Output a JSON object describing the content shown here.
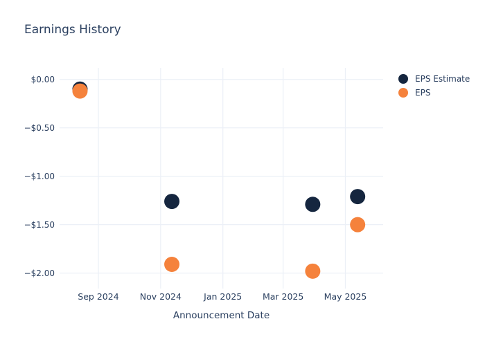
{
  "title": "Earnings History",
  "colors": {
    "text": "#2a3f5f",
    "grid": "#ecf0f7",
    "background": "#ffffff",
    "eps_estimate": "#15263f",
    "eps": "#f5823c"
  },
  "legend": {
    "items": [
      {
        "label": "EPS Estimate",
        "color": "#15263f"
      },
      {
        "label": "EPS",
        "color": "#f5823c"
      }
    ]
  },
  "chart_data": {
    "type": "scatter",
    "title": "Earnings History",
    "xlabel": "Announcement Date",
    "ylabel": "",
    "x": [
      "2024-08-14",
      "2024-11-12",
      "2025-03-30",
      "2025-05-13"
    ],
    "series": [
      {
        "name": "EPS Estimate",
        "color": "#15263f",
        "values": [
          -0.1,
          -1.26,
          -1.29,
          -1.21
        ]
      },
      {
        "name": "EPS",
        "color": "#f5823c",
        "values": [
          -0.12,
          -1.91,
          -1.98,
          -1.5
        ]
      }
    ],
    "xticks": [
      {
        "value": "2024-09-01",
        "label": "Sep 2024"
      },
      {
        "value": "2024-11-01",
        "label": "Nov 2024"
      },
      {
        "value": "2025-01-01",
        "label": "Jan 2025"
      },
      {
        "value": "2025-03-01",
        "label": "Mar 2025"
      },
      {
        "value": "2025-05-01",
        "label": "May 2025"
      }
    ],
    "yticks": [
      {
        "value": 0.0,
        "label": "$0.00"
      },
      {
        "value": -0.5,
        "label": "−$0.50"
      },
      {
        "value": -1.0,
        "label": "−$1.00"
      },
      {
        "value": -1.5,
        "label": "−$1.50"
      },
      {
        "value": -2.0,
        "label": "−$2.00"
      }
    ],
    "xlim": [
      "2024-07-25",
      "2025-06-07"
    ],
    "ylim": [
      -2.16,
      0.12
    ],
    "grid": true,
    "legend_position": "right",
    "marker_radius": 11
  }
}
